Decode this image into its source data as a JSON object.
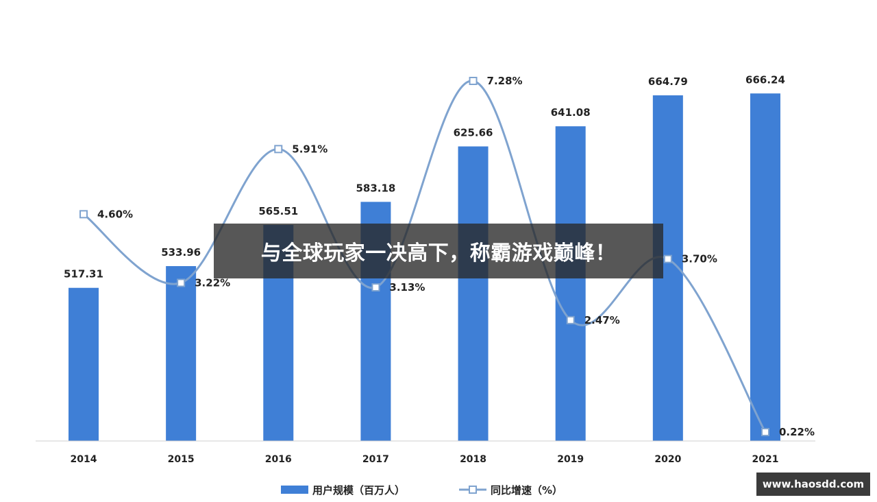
{
  "chart_data": {
    "type": "bar",
    "categories": [
      "2014",
      "2015",
      "2016",
      "2017",
      "2018",
      "2019",
      "2020",
      "2021"
    ],
    "series": [
      {
        "name": "用户规模（百万人）",
        "type": "bar",
        "values": [
          517.31,
          533.96,
          565.51,
          583.18,
          625.66,
          641.08,
          664.79,
          666.24
        ],
        "labels": [
          "517.31",
          "533.96",
          "565.51",
          "583.18",
          "625.66",
          "641.08",
          "664.79",
          "666.24"
        ],
        "color": "#3f7fd6"
      },
      {
        "name": "同比增速（%）",
        "type": "line",
        "values": [
          4.6,
          3.22,
          5.91,
          3.13,
          7.28,
          2.47,
          3.7,
          0.22
        ],
        "labels": [
          "4.60%",
          "3.22%",
          "5.91%",
          "3.13%",
          "7.28%",
          "2.47%",
          "3.70%",
          "0.22%"
        ],
        "color": "#7fa3cf"
      }
    ],
    "legend_position": "bottom-center",
    "grid": false
  },
  "overlay": {
    "banner_text": "与全球玩家一决高下，称霸游戏巅峰！"
  },
  "badge": {
    "site_text": "www.haosdd.com"
  }
}
